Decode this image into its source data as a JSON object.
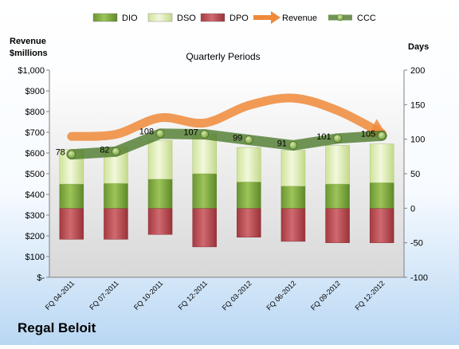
{
  "company": "Regal Beloit",
  "chart_data": {
    "type": "bar",
    "title": "Quarterly Periods",
    "left_axis": {
      "label_line1": "Revenue",
      "label_line2": "$millions",
      "ylim": [
        0,
        1000
      ],
      "tick_values": [
        0,
        100,
        200,
        300,
        400,
        500,
        600,
        700,
        800,
        900,
        1000
      ],
      "tick_labels": [
        "$-",
        "$100",
        "$200",
        "$300",
        "$400",
        "$500",
        "$600",
        "$700",
        "$800",
        "$900",
        "$1,000"
      ]
    },
    "right_axis": {
      "label": "Days",
      "ylim": [
        -100,
        200
      ],
      "tick_values": [
        -100,
        -50,
        0,
        50,
        100,
        150,
        200
      ],
      "tick_labels": [
        "-100",
        "-50",
        "0",
        "50",
        "100",
        "150",
        "200"
      ]
    },
    "categories": [
      "FQ 04-2011",
      "FQ 07-2011",
      "FQ 10-2011",
      "FQ 12-2011",
      "FQ 03-2012",
      "FQ 06-2012",
      "FQ 09-2012",
      "FQ 12-2012"
    ],
    "legend": {
      "placement": "top",
      "entries": [
        {
          "key": "dio",
          "label": "DIO",
          "style": "bar"
        },
        {
          "key": "dso",
          "label": "DSO",
          "style": "bar"
        },
        {
          "key": "dpo",
          "label": "DPO",
          "style": "bar"
        },
        {
          "key": "revenue",
          "label": "Revenue",
          "style": "arrow"
        },
        {
          "key": "ccc",
          "label": "CCC",
          "style": "line-marker"
        }
      ]
    },
    "series": [
      {
        "key": "dio",
        "name": "DIO",
        "axis": "right",
        "values": [
          35,
          36,
          42,
          50,
          38,
          32,
          35,
          37
        ],
        "color": "#7ea83c"
      },
      {
        "key": "dso",
        "name": "DSO",
        "axis": "right",
        "values": [
          50,
          52,
          56,
          57,
          50,
          52,
          56,
          56
        ],
        "color": "#d9eaa6"
      },
      {
        "key": "dpo",
        "name": "DPO",
        "axis": "right",
        "values": [
          -45,
          -45,
          -38,
          -56,
          -42,
          -48,
          -50,
          -50
        ],
        "color": "#b9454c"
      },
      {
        "key": "revenue",
        "name": "Revenue",
        "axis": "left",
        "values": [
          680,
          690,
          770,
          745,
          830,
          865,
          805,
          695
        ],
        "color": "#ee8a3a"
      },
      {
        "key": "ccc",
        "name": "CCC",
        "axis": "right",
        "values": [
          78,
          82,
          108,
          107,
          99,
          91,
          101,
          105
        ],
        "labels": [
          "78",
          "82",
          "108",
          "107",
          "99",
          "91",
          "101",
          "105"
        ],
        "color": "#4e7a2c"
      }
    ],
    "grid": false
  }
}
